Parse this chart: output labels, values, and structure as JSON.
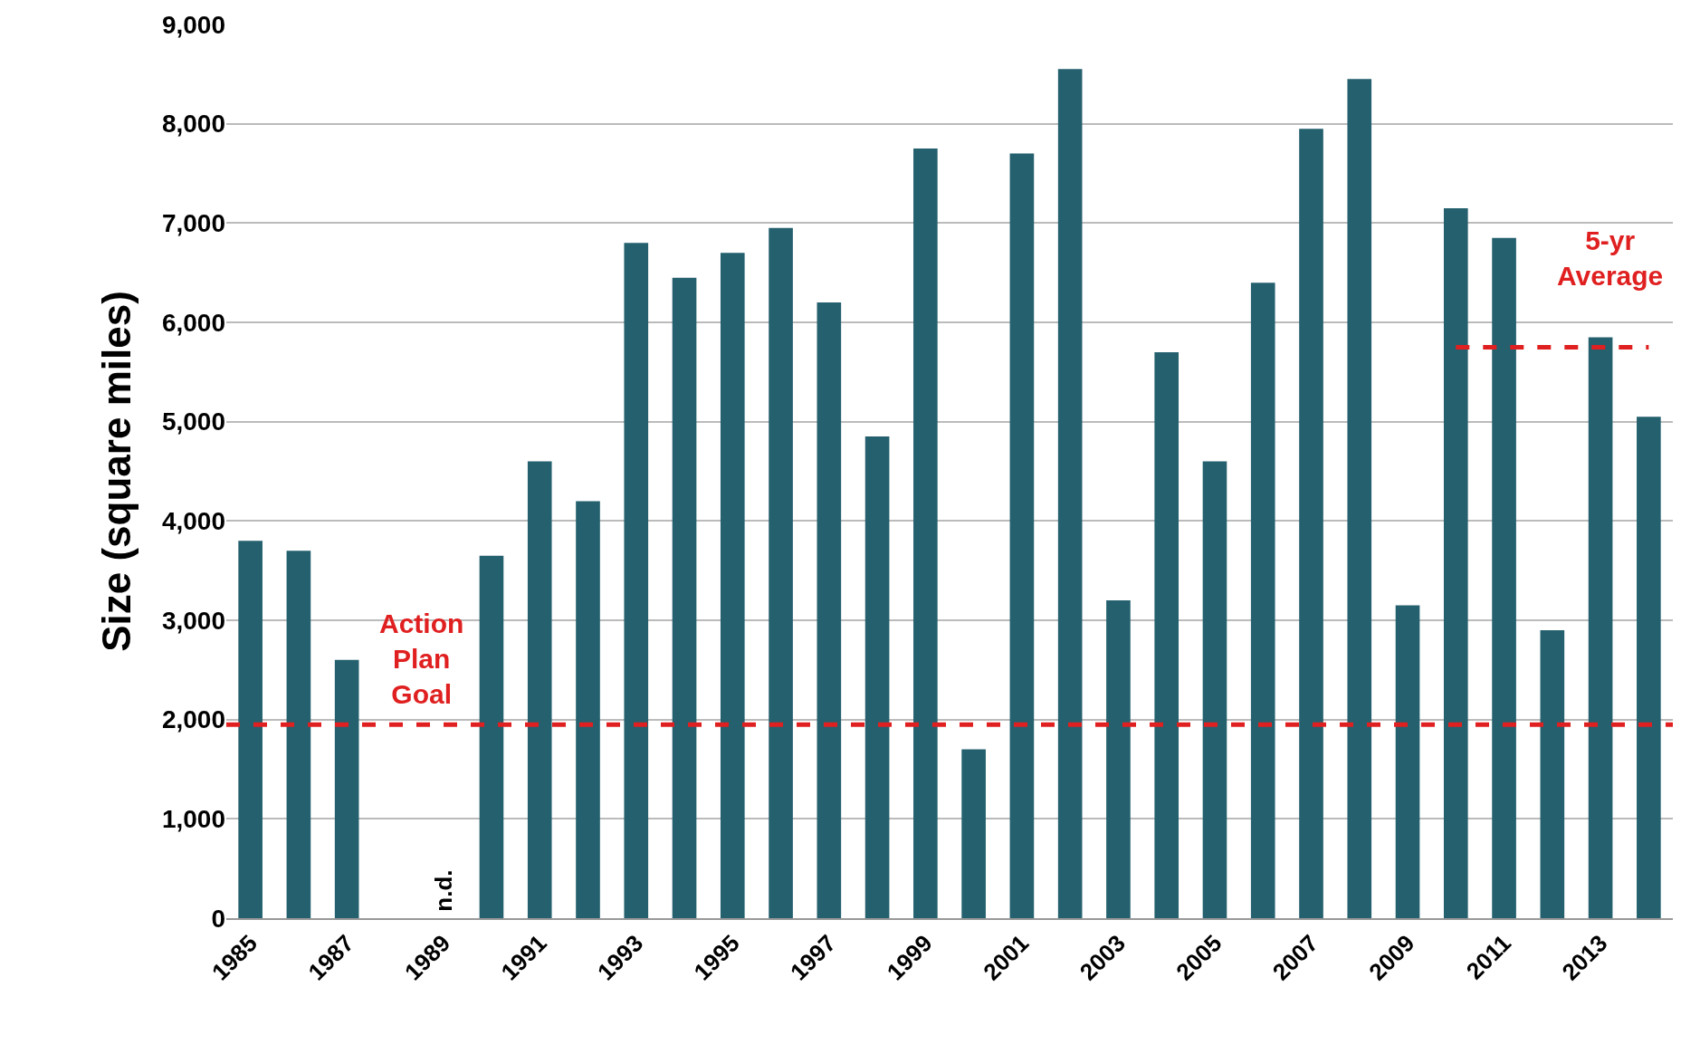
{
  "chart_data": {
    "type": "bar",
    "ylabel": "Size (square miles)",
    "categories": [
      "1985",
      null,
      "1987",
      null,
      "1989",
      null,
      "1991",
      null,
      "1993",
      null,
      "1995",
      null,
      "1997",
      null,
      "1999",
      null,
      "2001",
      null,
      "2003",
      null,
      "2005",
      null,
      "2007",
      null,
      "2009",
      null,
      "2011",
      null,
      "2013",
      null
    ],
    "series": [
      {
        "color": "#24606e",
        "values": [
          3800,
          3700,
          2600,
          null,
          null,
          3650,
          4600,
          4200,
          6800,
          6450,
          6700,
          6950,
          6200,
          4850,
          7750,
          1700,
          7700,
          8550,
          3200,
          5700,
          4600,
          6400,
          7950,
          8450,
          3150,
          7150,
          6850,
          2900,
          5850,
          5050
        ]
      },
      {
        "type": "line",
        "name": "5-yr Average",
        "color": "#e02020",
        "line_style": "dashed",
        "values": [
          null,
          null,
          null,
          null,
          null,
          null,
          null,
          null,
          null,
          null,
          null,
          null,
          null,
          null,
          null,
          null,
          null,
          null,
          null,
          null,
          null,
          null,
          null,
          null,
          null,
          5750,
          5750,
          5750,
          5750,
          5750
        ]
      }
    ],
    "ylim": [
      0,
      9000
    ],
    "yticks": [
      0,
      {
        "value": 1000,
        "label": "1,000"
      },
      {
        "value": 2000,
        "label": "2,000"
      },
      {
        "value": 3000,
        "label": "3,000"
      },
      {
        "value": 4000,
        "label": "4,000"
      },
      {
        "value": 5000,
        "label": "5,000"
      },
      {
        "value": 6000,
        "label": "6,000"
      },
      {
        "value": 7000,
        "label": "7,000"
      },
      {
        "value": 8000,
        "label": "8,000"
      },
      {
        "value": 9000,
        "label": "9,000"
      }
    ],
    "grid": "y",
    "ref_lines": [
      {
        "axis": "y",
        "value": 1950,
        "label": "Action Plan Goal",
        "color": "#e02020",
        "line_style": "dashed"
      }
    ],
    "annotations": [
      "n.d."
    ]
  }
}
